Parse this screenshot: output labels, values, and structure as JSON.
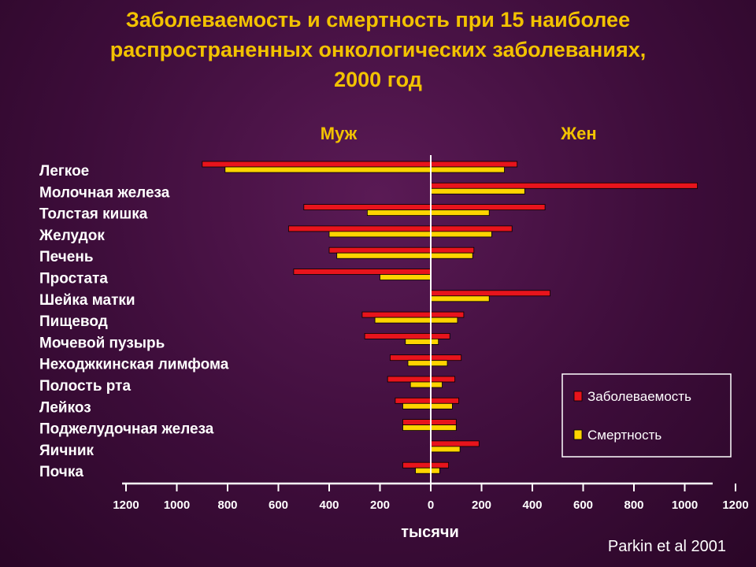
{
  "colors": {
    "incidence": "#e8141c",
    "mortality": "#ffd400",
    "title": "#f2c200",
    "text": "#ffffff"
  },
  "chart_data": {
    "type": "bar",
    "orientation": "horizontal-pyramid",
    "title_lines": [
      "Заболеваемость и смертность при 15 наиболее",
      "распространенных онкологических заболеваниях,",
      "2000 год"
    ],
    "left_label": "Муж",
    "right_label": "Жен",
    "xlabel": "тысячи",
    "xlim": [
      -1200,
      1200
    ],
    "tick_labels_left": [
      "1200",
      "1000",
      "800",
      "600",
      "400",
      "200"
    ],
    "tick_values_left": [
      -1200,
      -1000,
      -800,
      -600,
      -400,
      -200
    ],
    "tick_labels_right": [
      "0",
      "200",
      "400",
      "600",
      "800",
      "1000",
      "1200"
    ],
    "tick_values_right": [
      0,
      200,
      400,
      600,
      800,
      1000,
      1200
    ],
    "categories": [
      "Легкое",
      "Молочная железа",
      "Толстая кишка",
      "Желудок",
      "Печень",
      "Простата",
      "Шейка матки",
      "Пищевод",
      "Мочевой пузырь",
      "Неходжкинская лимфома",
      "Полость рта",
      "Лейкоз",
      "Поджелудочная железа",
      "Яичник",
      "Почка"
    ],
    "series": [
      {
        "name": "Заболеваемость",
        "key": "incidence",
        "side": "male",
        "values": [
          900,
          0,
          500,
          560,
          400,
          540,
          0,
          270,
          260,
          160,
          170,
          140,
          110,
          0,
          110
        ]
      },
      {
        "name": "Смертность",
        "key": "mortality",
        "side": "male",
        "values": [
          810,
          0,
          250,
          400,
          370,
          200,
          0,
          220,
          100,
          90,
          80,
          110,
          110,
          0,
          60
        ]
      },
      {
        "name": "Заболеваемость",
        "key": "incidence",
        "side": "female",
        "values": [
          340,
          1050,
          450,
          320,
          170,
          0,
          470,
          130,
          75,
          120,
          95,
          110,
          100,
          190,
          70
        ]
      },
      {
        "name": "Смертность",
        "key": "mortality",
        "side": "female",
        "values": [
          290,
          370,
          230,
          240,
          165,
          0,
          230,
          105,
          30,
          65,
          45,
          85,
          100,
          115,
          35
        ]
      }
    ],
    "legend": {
      "position": "bottom-right",
      "entries": [
        {
          "label": "Заболеваемость",
          "color_key": "incidence"
        },
        {
          "label": "Смертность",
          "color_key": "mortality"
        }
      ]
    },
    "source": "Parkin et al 2001"
  }
}
